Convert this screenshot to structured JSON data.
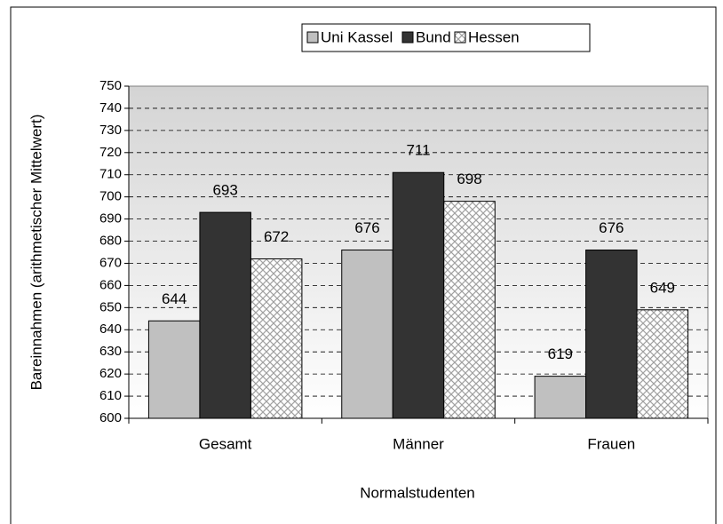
{
  "chart_data": {
    "type": "bar",
    "x_label": "Normalstudenten",
    "y_label": "Bareinnahmen (arithmetischer Mittelwert)",
    "categories": [
      "Gesamt",
      "Männer",
      "Frauen"
    ],
    "series": [
      {
        "name": "Uni Kassel",
        "color": "#c0c0c0",
        "values": [
          644,
          676,
          619
        ]
      },
      {
        "name": "Bund",
        "color": "#333333",
        "values": [
          693,
          711,
          676
        ]
      },
      {
        "name": "Hessen",
        "color": "pattern",
        "values": [
          672,
          698,
          649
        ]
      }
    ],
    "ylim": [
      600,
      750
    ],
    "yticks": [
      600,
      610,
      620,
      630,
      640,
      650,
      660,
      670,
      680,
      690,
      700,
      710,
      720,
      730,
      740,
      750
    ],
    "grid": true,
    "legend": "top"
  }
}
